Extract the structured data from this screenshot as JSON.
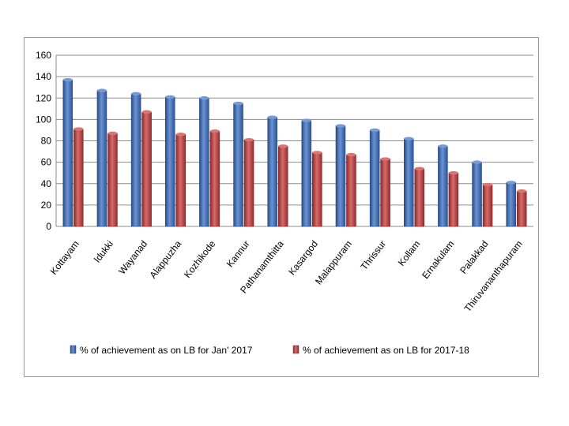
{
  "chart_data": {
    "type": "bar",
    "title": "",
    "xlabel": "",
    "ylabel": "",
    "ylim": [
      0,
      160
    ],
    "yticks": [
      0,
      20,
      40,
      60,
      80,
      100,
      120,
      140,
      160
    ],
    "grid": true,
    "legend_position": "bottom",
    "categories": [
      "Kottayam",
      "Idukki",
      "Wayanad",
      "Alappuzha",
      "Kozhikode",
      "Kannur",
      "Pathanamthitta",
      "Kasargod",
      "Malappuram",
      "Thrissur",
      "Kollam",
      "Ernakulam",
      "Palakkad",
      "Thiruvananthapuram"
    ],
    "series": [
      {
        "name": "% of achievement as on LB for Jan' 2017",
        "color": "#3a6fc4",
        "values": [
          137,
          127,
          124,
          121,
          120,
          115,
          102,
          99,
          94,
          90,
          82,
          75,
          60,
          41
        ]
      },
      {
        "name": "% of achievement as on LB for 2017-18",
        "color": "#c83a3a",
        "values": [
          91,
          87,
          107,
          86,
          89,
          81,
          75,
          69,
          67,
          63,
          54,
          50,
          39,
          33
        ]
      }
    ]
  }
}
